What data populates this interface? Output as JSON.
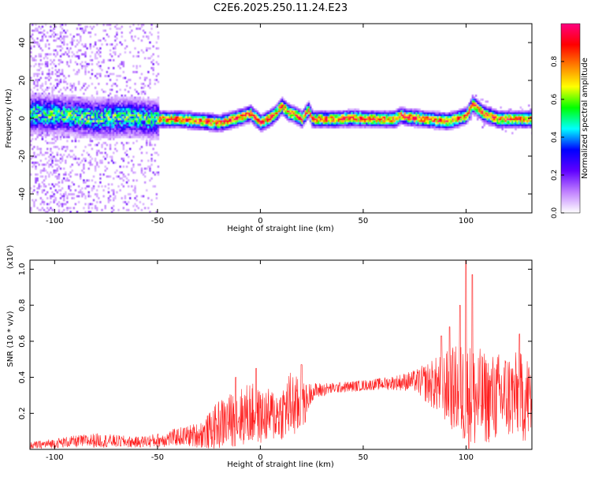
{
  "page": {
    "title": "C2E6.2025.250.11.24.E23"
  },
  "colorbar": {
    "label": "Normalized spectral amplitude",
    "ticks": [
      "0.0",
      "0.2",
      "0.4",
      "0.6",
      "0.8"
    ],
    "tick_values": [
      0.0,
      0.2,
      0.4,
      0.6,
      0.8
    ],
    "range": [
      0,
      1
    ],
    "stops": [
      "#ffffff",
      "#c080ff",
      "#6000ff",
      "#0000ff",
      "#00ffff",
      "#00ff00",
      "#ffff00",
      "#ff8000",
      "#ff0000",
      "#ff0080"
    ]
  },
  "chart_data": [
    {
      "type": "heatmap",
      "title": "C2E6.2025.250.11.24.E23",
      "xlabel": "Height of straight line (km)",
      "ylabel": "Frequency (Hz)",
      "xlim": [
        -112,
        132
      ],
      "ylim": [
        -50,
        50
      ],
      "x_ticks": [
        -100,
        -50,
        0,
        50,
        100
      ],
      "x_tick_labels": [
        "-100",
        "-50",
        "0",
        "50",
        "100"
      ],
      "y_ticks": [
        -40,
        -20,
        0,
        20,
        40
      ],
      "y_tick_labels": [
        "-40",
        "-20",
        "0",
        "20",
        "40"
      ],
      "ridge_center": {
        "x": [
          -112,
          -95,
          -80,
          -65,
          -50,
          -40,
          -30,
          -20,
          -10,
          -5,
          0,
          5,
          8,
          10,
          13,
          17,
          20,
          23,
          25,
          35,
          45,
          55,
          65,
          68,
          72,
          80,
          90,
          95,
          100,
          103,
          108,
          115,
          125,
          132
        ],
        "y": [
          3,
          2,
          0.5,
          1,
          0,
          0,
          -1,
          -2,
          1,
          3,
          -2,
          1,
          4,
          7,
          4,
          2,
          0,
          5,
          0,
          0,
          0.5,
          0,
          0,
          2,
          1,
          0,
          -1,
          0,
          2,
          8,
          3,
          0,
          0,
          0
        ]
      },
      "noise_region_x": [
        -112,
        -50
      ],
      "colormap": "rainbow"
    },
    {
      "type": "line",
      "title": "",
      "xlabel": "Height of straight line (km)",
      "ylabel": "SNR (10 * v/v)",
      "y_multiplier": "(x10⁴)",
      "xlim": [
        -112,
        132
      ],
      "ylim": [
        0,
        1.05
      ],
      "x_ticks": [
        -100,
        -50,
        0,
        50,
        100
      ],
      "x_tick_labels": [
        "-100",
        "-50",
        "0",
        "50",
        "100"
      ],
      "y_ticks": [
        0.2,
        0.4,
        0.6,
        0.8,
        1.0
      ],
      "y_tick_labels": [
        "0.2",
        "0.4",
        "0.6",
        "0.8",
        "1.0"
      ],
      "color": "#ff2020",
      "series": [
        {
          "envelope": {
            "x": [
              -112,
              -95,
              -80,
              -60,
              -50,
              -40,
              -30,
              -25,
              -20,
              -10,
              -5,
              0,
              10,
              15,
              20,
              25,
              35,
              45,
              55,
              65,
              75,
              85,
              95,
              100,
              105,
              110,
              120,
              132
            ],
            "mean": [
              0.02,
              0.04,
              0.05,
              0.04,
              0.05,
              0.07,
              0.08,
              0.1,
              0.14,
              0.18,
              0.2,
              0.18,
              0.2,
              0.25,
              0.22,
              0.32,
              0.34,
              0.35,
              0.36,
              0.37,
              0.38,
              0.36,
              0.33,
              0.3,
              0.28,
              0.28,
              0.3,
              0.28
            ],
            "amp": [
              0.02,
              0.03,
              0.04,
              0.03,
              0.04,
              0.05,
              0.07,
              0.1,
              0.14,
              0.16,
              0.18,
              0.15,
              0.15,
              0.2,
              0.15,
              0.05,
              0.03,
              0.03,
              0.03,
              0.04,
              0.06,
              0.15,
              0.25,
              0.3,
              0.3,
              0.25,
              0.25,
              0.25
            ]
          },
          "peaks": [
            {
              "x": -12,
              "y": 0.4
            },
            {
              "x": -2,
              "y": 0.45
            },
            {
              "x": 20,
              "y": 0.47
            },
            {
              "x": 88,
              "y": 0.63
            },
            {
              "x": 92,
              "y": 0.68
            },
            {
              "x": 97,
              "y": 0.8
            },
            {
              "x": 100,
              "y": 1.05
            },
            {
              "x": 103,
              "y": 0.97
            },
            {
              "x": 126,
              "y": 0.64
            }
          ]
        }
      ]
    }
  ]
}
